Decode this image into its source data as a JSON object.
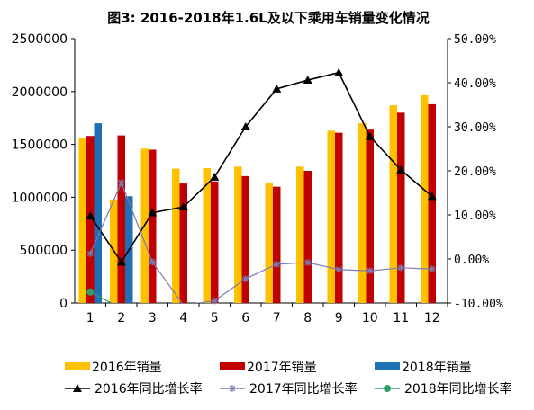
{
  "chart_data": {
    "type": "bar",
    "title": "图3: 2016-2018年1.6L及以下乘用车销量变化情况",
    "categories": [
      "1",
      "2",
      "3",
      "4",
      "5",
      "6",
      "7",
      "8",
      "9",
      "10",
      "11",
      "12"
    ],
    "y_left_range": [
      0,
      2500000
    ],
    "y_left_ticks": [
      "0",
      "500000",
      "1000000",
      "1500000",
      "2000000",
      "2500000"
    ],
    "y_right_range": [
      -10,
      50
    ],
    "y_right_ticks": [
      "-10.00%",
      "0.00%",
      "10.00%",
      "20.00%",
      "30.00%",
      "40.00%",
      "50.00%"
    ],
    "bar_series": [
      {
        "name": "2016年销量",
        "color": "#FFC000",
        "values": [
          1560000,
          980000,
          1460000,
          1270000,
          1275000,
          1290000,
          1140000,
          1290000,
          1630000,
          1700000,
          1870000,
          1965000
        ]
      },
      {
        "name": "2017年销量",
        "color": "#C00000",
        "values": [
          1580000,
          1585000,
          1450000,
          1130000,
          1150000,
          1200000,
          1100000,
          1250000,
          1610000,
          1640000,
          1800000,
          1880000
        ]
      },
      {
        "name": "2018年销量",
        "color": "#1F6FB4",
        "values": [
          1700000,
          1010000,
          null,
          null,
          null,
          null,
          null,
          null,
          null,
          null,
          null,
          null
        ]
      }
    ],
    "line_series": [
      {
        "name": "2016年同比增长率",
        "color": "#000000",
        "marker": "triangle",
        "values": [
          9.8,
          -0.7,
          10.5,
          11.8,
          18.6,
          30.0,
          38.6,
          40.6,
          42.3,
          27.8,
          20.2,
          14.2
        ]
      },
      {
        "name": "2017年同比增长率",
        "color": "#7B7BB8",
        "marker": "star",
        "values": [
          1.2,
          17.3,
          -0.7,
          -10.5,
          -9.5,
          -4.5,
          -1.2,
          -0.8,
          -2.4,
          -2.7,
          -2.0,
          -2.3
        ]
      },
      {
        "name": "2018年同比增长率",
        "color": "#2E9E6E",
        "marker": "circle",
        "values": [
          -7.5,
          -11.2,
          null,
          null,
          null,
          null,
          null,
          null,
          null,
          null,
          null,
          null
        ]
      }
    ],
    "legend_position": "bottom",
    "grid": false
  }
}
